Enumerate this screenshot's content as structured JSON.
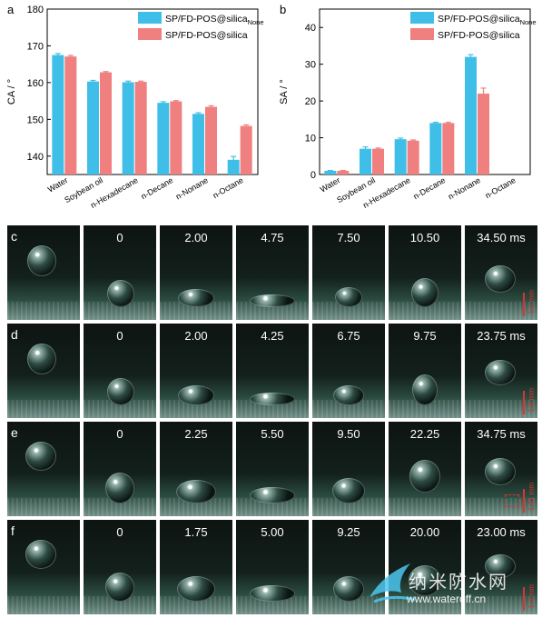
{
  "chart_data": [
    {
      "panel": "a",
      "type": "bar",
      "ylabel": "CA / °",
      "ylim": [
        135,
        180
      ],
      "yticks": [
        140,
        150,
        160,
        170,
        180
      ],
      "categories": [
        "Water",
        "Soybean oil",
        "n-Hexadecane",
        "n-Decane",
        "n-Nonane",
        "n-Octane"
      ],
      "series": [
        {
          "name": "SP/FD-POS@silica",
          "name_sub": "None",
          "color": "#3fbfe8",
          "values": [
            167.5,
            160.3,
            160.1,
            154.5,
            151.5,
            139.0
          ],
          "errors": [
            0.4,
            0.3,
            0.3,
            0.3,
            0.3,
            0.9
          ]
        },
        {
          "name": "SP/FD-POS@silica",
          "name_sub": "",
          "color": "#f07f7f",
          "values": [
            167.1,
            162.8,
            160.2,
            154.9,
            153.4,
            148.2
          ],
          "errors": [
            0.3,
            0.2,
            0.2,
            0.2,
            0.3,
            0.3
          ]
        }
      ],
      "legend": "top-right"
    },
    {
      "panel": "b",
      "type": "bar",
      "ylabel": "SA / °",
      "ylim": [
        0,
        45
      ],
      "yticks": [
        0,
        10,
        20,
        30,
        40
      ],
      "categories": [
        "Water",
        "Soybean oil",
        "n-Hexadecane",
        "n-Decane",
        "n-Nonane",
        "n-Octane"
      ],
      "series": [
        {
          "name": "SP/FD-POS@silica",
          "name_sub": "None",
          "color": "#3fbfe8",
          "values": [
            1.0,
            7.0,
            9.6,
            14.0,
            32.0,
            0
          ],
          "errors": [
            0.1,
            0.5,
            0.3,
            0.2,
            0.6,
            0
          ]
        },
        {
          "name": "SP/FD-POS@silica",
          "name_sub": "",
          "color": "#f07f7f",
          "values": [
            1.0,
            7.0,
            9.2,
            14.0,
            22.0,
            0
          ],
          "errors": [
            0.1,
            0.2,
            0.2,
            0.2,
            1.5,
            0
          ]
        }
      ],
      "legend": "top-right"
    }
  ],
  "frames": {
    "rows": [
      {
        "label": "c",
        "times": [
          "",
          "0",
          "2.00",
          "4.75",
          "7.50",
          "10.50",
          "34.50 ms"
        ],
        "scale": "1.1 mm"
      },
      {
        "label": "d",
        "times": [
          "",
          "0",
          "2.00",
          "4.25",
          "6.75",
          "9.75",
          "23.75 ms"
        ],
        "scale": "1.8 mm"
      },
      {
        "label": "e",
        "times": [
          "",
          "0",
          "2.25",
          "5.50",
          "9.50",
          "22.25",
          "34.75 ms"
        ],
        "scale": "1.21 mm"
      },
      {
        "label": "f",
        "times": [
          "",
          "0",
          "1.75",
          "5.00",
          "9.25",
          "20.00",
          "23.00 ms"
        ],
        "scale": "1.0 mm"
      }
    ]
  },
  "watermark": {
    "text": "纳米防水网",
    "url": "www.wateroff.cn"
  }
}
